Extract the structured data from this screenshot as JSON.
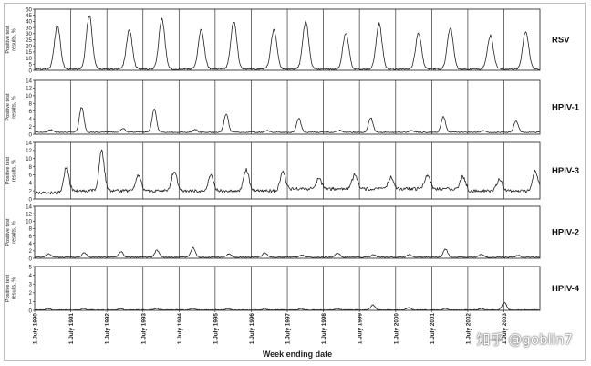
{
  "chart_data": {
    "type": "line",
    "xlabel": "Week ending date",
    "x_tick_labels": [
      "1 July 1990",
      "1 July 1991",
      "1 July 1992",
      "1 July 1993",
      "1 July 1994",
      "1 July 1995",
      "1 July 1996",
      "1 July 1997",
      "1 July 1998",
      "1 July 1999",
      "1 July 2000",
      "1 July 2001",
      "1 July 2002",
      "1 July 2003"
    ],
    "ylabel": "Positive test results, %",
    "grid": false,
    "x_range": [
      "1 July 1990",
      "30 June 2004"
    ],
    "season_start": "1 July",
    "panels": [
      {
        "name": "RSV",
        "ylim": [
          0,
          50
        ],
        "yticks": [
          0,
          5,
          10,
          15,
          20,
          25,
          30,
          35,
          40,
          45,
          50
        ],
        "series": [
          {
            "season": "1990-91",
            "peak_week_ending": "1991-02-16",
            "peak_pct": 37,
            "baseline_pct": 1
          },
          {
            "season": "1991-92",
            "peak_week_ending": "1992-01-04",
            "peak_pct": 45,
            "baseline_pct": 1
          },
          {
            "season": "1992-93",
            "peak_week_ending": "1993-02-13",
            "peak_pct": 33,
            "baseline_pct": 1
          },
          {
            "season": "1993-94",
            "peak_week_ending": "1994-01-08",
            "peak_pct": 42,
            "baseline_pct": 1
          },
          {
            "season": "1994-95",
            "peak_week_ending": "1995-02-11",
            "peak_pct": 33,
            "baseline_pct": 1
          },
          {
            "season": "1995-96",
            "peak_week_ending": "1996-01-06",
            "peak_pct": 40,
            "baseline_pct": 1
          },
          {
            "season": "1996-97",
            "peak_week_ending": "1997-02-15",
            "peak_pct": 33,
            "baseline_pct": 1
          },
          {
            "season": "1997-98",
            "peak_week_ending": "1998-01-03",
            "peak_pct": 40,
            "baseline_pct": 1
          },
          {
            "season": "1998-99",
            "peak_week_ending": "1999-02-13",
            "peak_pct": 31,
            "baseline_pct": 1
          },
          {
            "season": "1999-00",
            "peak_week_ending": "2000-01-15",
            "peak_pct": 38,
            "baseline_pct": 1
          },
          {
            "season": "2000-01",
            "peak_week_ending": "2001-02-17",
            "peak_pct": 30,
            "baseline_pct": 1
          },
          {
            "season": "2001-02",
            "peak_week_ending": "2002-01-05",
            "peak_pct": 35,
            "baseline_pct": 1
          },
          {
            "season": "2002-03",
            "peak_week_ending": "2003-02-15",
            "peak_pct": 28,
            "baseline_pct": 1
          },
          {
            "season": "2003-04",
            "peak_week_ending": "2004-02-07",
            "peak_pct": 32,
            "baseline_pct": 1
          }
        ]
      },
      {
        "name": "HPIV-1",
        "ylim": [
          0,
          14
        ],
        "yticks": [
          0,
          2,
          4,
          6,
          8,
          10,
          12,
          14
        ],
        "series": [
          {
            "season": "1990-91",
            "peak_week_ending": "1990-12-08",
            "peak_pct": 1.2,
            "baseline_pct": 0.5
          },
          {
            "season": "1991-92",
            "peak_week_ending": "1991-10-19",
            "peak_pct": 7,
            "baseline_pct": 0.5
          },
          {
            "season": "1992-93",
            "peak_week_ending": "1992-12-12",
            "peak_pct": 1.5,
            "baseline_pct": 0.5
          },
          {
            "season": "1993-94",
            "peak_week_ending": "1993-10-23",
            "peak_pct": 6.5,
            "baseline_pct": 0.5
          },
          {
            "season": "1994-95",
            "peak_week_ending": "1994-12-10",
            "peak_pct": 1.2,
            "baseline_pct": 0.5
          },
          {
            "season": "1995-96",
            "peak_week_ending": "1995-10-21",
            "peak_pct": 5.2,
            "baseline_pct": 0.5
          },
          {
            "season": "1996-97",
            "peak_week_ending": "1996-12-07",
            "peak_pct": 1.0,
            "baseline_pct": 0.5
          },
          {
            "season": "1997-98",
            "peak_week_ending": "1997-10-25",
            "peak_pct": 4.2,
            "baseline_pct": 0.5
          },
          {
            "season": "1998-99",
            "peak_week_ending": "1998-12-12",
            "peak_pct": 1.0,
            "baseline_pct": 0.5
          },
          {
            "season": "1999-00",
            "peak_week_ending": "1999-10-23",
            "peak_pct": 4.3,
            "baseline_pct": 0.5
          },
          {
            "season": "2000-01",
            "peak_week_ending": "2000-12-09",
            "peak_pct": 1.0,
            "baseline_pct": 0.5
          },
          {
            "season": "2001-02",
            "peak_week_ending": "2001-10-27",
            "peak_pct": 4.5,
            "baseline_pct": 0.5
          },
          {
            "season": "2002-03",
            "peak_week_ending": "2002-12-07",
            "peak_pct": 0.9,
            "baseline_pct": 0.5
          },
          {
            "season": "2003-04",
            "peak_week_ending": "2003-11-01",
            "peak_pct": 3.5,
            "baseline_pct": 0.5
          }
        ]
      },
      {
        "name": "HPIV-3",
        "ylim": [
          0,
          14
        ],
        "yticks": [
          0,
          2,
          4,
          6,
          8,
          10,
          12,
          14
        ],
        "series": [
          {
            "season": "1990-91",
            "peak_week_ending": "1991-05-18",
            "peak_pct": 8,
            "baseline_pct": 1.5
          },
          {
            "season": "1991-92",
            "peak_week_ending": "1992-05-09",
            "peak_pct": 12,
            "baseline_pct": 2
          },
          {
            "season": "1992-93",
            "peak_week_ending": "1993-05-15",
            "peak_pct": 6,
            "baseline_pct": 2
          },
          {
            "season": "1993-94",
            "peak_week_ending": "1994-05-14",
            "peak_pct": 7,
            "baseline_pct": 2
          },
          {
            "season": "1994-95",
            "peak_week_ending": "1995-05-20",
            "peak_pct": 6,
            "baseline_pct": 2
          },
          {
            "season": "1995-96",
            "peak_week_ending": "1996-05-11",
            "peak_pct": 7.5,
            "baseline_pct": 2
          },
          {
            "season": "1996-97",
            "peak_week_ending": "1997-05-17",
            "peak_pct": 7,
            "baseline_pct": 2
          },
          {
            "season": "1997-98",
            "peak_week_ending": "1998-05-16",
            "peak_pct": 5,
            "baseline_pct": 2.5
          },
          {
            "season": "1998-99",
            "peak_week_ending": "1999-05-15",
            "peak_pct": 6,
            "baseline_pct": 2.5
          },
          {
            "season": "1999-00",
            "peak_week_ending": "2000-05-13",
            "peak_pct": 5.5,
            "baseline_pct": 2.5
          },
          {
            "season": "2000-01",
            "peak_week_ending": "2001-05-19",
            "peak_pct": 6,
            "baseline_pct": 2.5
          },
          {
            "season": "2001-02",
            "peak_week_ending": "2002-05-11",
            "peak_pct": 5.5,
            "baseline_pct": 2.5
          },
          {
            "season": "2002-03",
            "peak_week_ending": "2003-05-17",
            "peak_pct": 5,
            "baseline_pct": 2
          },
          {
            "season": "2003-04",
            "peak_week_ending": "2004-05-15",
            "peak_pct": 7,
            "baseline_pct": 2
          }
        ]
      },
      {
        "name": "HPIV-2",
        "ylim": [
          0,
          14
        ],
        "yticks": [
          0,
          2,
          4,
          6,
          8,
          10,
          12,
          14
        ],
        "series": [
          {
            "season": "1990-91",
            "peak_week_ending": "1990-11-17",
            "peak_pct": 1.2,
            "baseline_pct": 0.3
          },
          {
            "season": "1991-92",
            "peak_week_ending": "1991-11-16",
            "peak_pct": 1.5,
            "baseline_pct": 0.3
          },
          {
            "season": "1992-93",
            "peak_week_ending": "1992-11-21",
            "peak_pct": 1.8,
            "baseline_pct": 0.3
          },
          {
            "season": "1993-94",
            "peak_week_ending": "1993-11-20",
            "peak_pct": 2.2,
            "baseline_pct": 0.3
          },
          {
            "season": "1994-95",
            "peak_week_ending": "1994-11-19",
            "peak_pct": 2.8,
            "baseline_pct": 0.3
          },
          {
            "season": "1995-96",
            "peak_week_ending": "1995-11-18",
            "peak_pct": 1.2,
            "baseline_pct": 0.3
          },
          {
            "season": "1996-97",
            "peak_week_ending": "1996-11-16",
            "peak_pct": 1.5,
            "baseline_pct": 0.3
          },
          {
            "season": "1997-98",
            "peak_week_ending": "1997-11-22",
            "peak_pct": 0.9,
            "baseline_pct": 0.3
          },
          {
            "season": "1998-99",
            "peak_week_ending": "1998-11-21",
            "peak_pct": 1.5,
            "baseline_pct": 0.3
          },
          {
            "season": "1999-00",
            "peak_week_ending": "1999-11-20",
            "peak_pct": 1.0,
            "baseline_pct": 0.3
          },
          {
            "season": "2000-01",
            "peak_week_ending": "2000-11-18",
            "peak_pct": 1.0,
            "baseline_pct": 0.3
          },
          {
            "season": "2001-02",
            "peak_week_ending": "2001-11-17",
            "peak_pct": 2.5,
            "baseline_pct": 0.3
          },
          {
            "season": "2002-03",
            "peak_week_ending": "2002-11-16",
            "peak_pct": 1.0,
            "baseline_pct": 0.3
          },
          {
            "season": "2003-04",
            "peak_week_ending": "2003-11-22",
            "peak_pct": 0.8,
            "baseline_pct": 0.3
          }
        ]
      },
      {
        "name": "HPIV-4",
        "ylim": [
          0,
          5
        ],
        "yticks": [
          0,
          1,
          2,
          3,
          4,
          5
        ],
        "series": [
          {
            "season": "1990-91",
            "peak_week_ending": "1990-11-10",
            "peak_pct": 0.2,
            "baseline_pct": 0.05
          },
          {
            "season": "1991-92",
            "peak_week_ending": "1991-11-09",
            "peak_pct": 0.2,
            "baseline_pct": 0.05
          },
          {
            "season": "1992-93",
            "peak_week_ending": "1992-11-14",
            "peak_pct": 0.2,
            "baseline_pct": 0.05
          },
          {
            "season": "1993-94",
            "peak_week_ending": "1993-11-13",
            "peak_pct": 0.2,
            "baseline_pct": 0.05
          },
          {
            "season": "1994-95",
            "peak_week_ending": "1994-11-12",
            "peak_pct": 0.2,
            "baseline_pct": 0.05
          },
          {
            "season": "1995-96",
            "peak_week_ending": "1995-11-11",
            "peak_pct": 0.2,
            "baseline_pct": 0.05
          },
          {
            "season": "1996-97",
            "peak_week_ending": "1996-11-09",
            "peak_pct": 0.2,
            "baseline_pct": 0.05
          },
          {
            "season": "1997-98",
            "peak_week_ending": "1997-11-15",
            "peak_pct": 0.2,
            "baseline_pct": 0.05
          },
          {
            "season": "1998-99",
            "peak_week_ending": "1998-11-14",
            "peak_pct": 0.2,
            "baseline_pct": 0.05
          },
          {
            "season": "1999-00",
            "peak_week_ending": "1999-11-13",
            "peak_pct": 0.6,
            "baseline_pct": 0.05
          },
          {
            "season": "2000-01",
            "peak_week_ending": "2000-11-11",
            "peak_pct": 0.3,
            "baseline_pct": 0.05
          },
          {
            "season": "2001-02",
            "peak_week_ending": "2001-11-10",
            "peak_pct": 0.2,
            "baseline_pct": 0.05
          },
          {
            "season": "2002-03",
            "peak_week_ending": "2002-11-09",
            "peak_pct": 0.2,
            "baseline_pct": 0.05
          },
          {
            "season": "2003-04",
            "peak_week_ending": "2003-07-05",
            "peak_pct": 0.9,
            "baseline_pct": 0.05
          }
        ]
      }
    ]
  },
  "watermark": "知乎 @goblin7",
  "colors": {
    "line": "#222222",
    "axis": "#333333",
    "frame": "#bdbdbd"
  }
}
